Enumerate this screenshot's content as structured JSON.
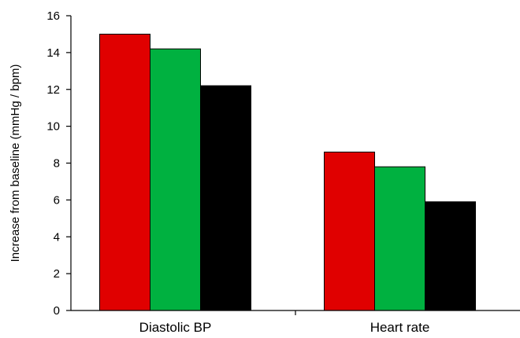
{
  "chart_data": {
    "type": "bar",
    "title": "",
    "xlabel": "",
    "ylabel": "Increase from baseline (mmHg / bpm)",
    "categories": [
      "Diastolic BP",
      "Heart rate"
    ],
    "series": [
      {
        "color": "#e00000",
        "values": [
          15.0,
          8.6
        ]
      },
      {
        "color": "#00b140",
        "values": [
          14.2,
          7.8
        ]
      },
      {
        "color": "#000000",
        "values": [
          12.2,
          5.9
        ]
      }
    ],
    "ylim": [
      0,
      16
    ],
    "yticks": [
      "0",
      "2",
      "4",
      "6",
      "8",
      "10",
      "12",
      "14",
      "16"
    ],
    "grid": false,
    "legend": "none"
  }
}
